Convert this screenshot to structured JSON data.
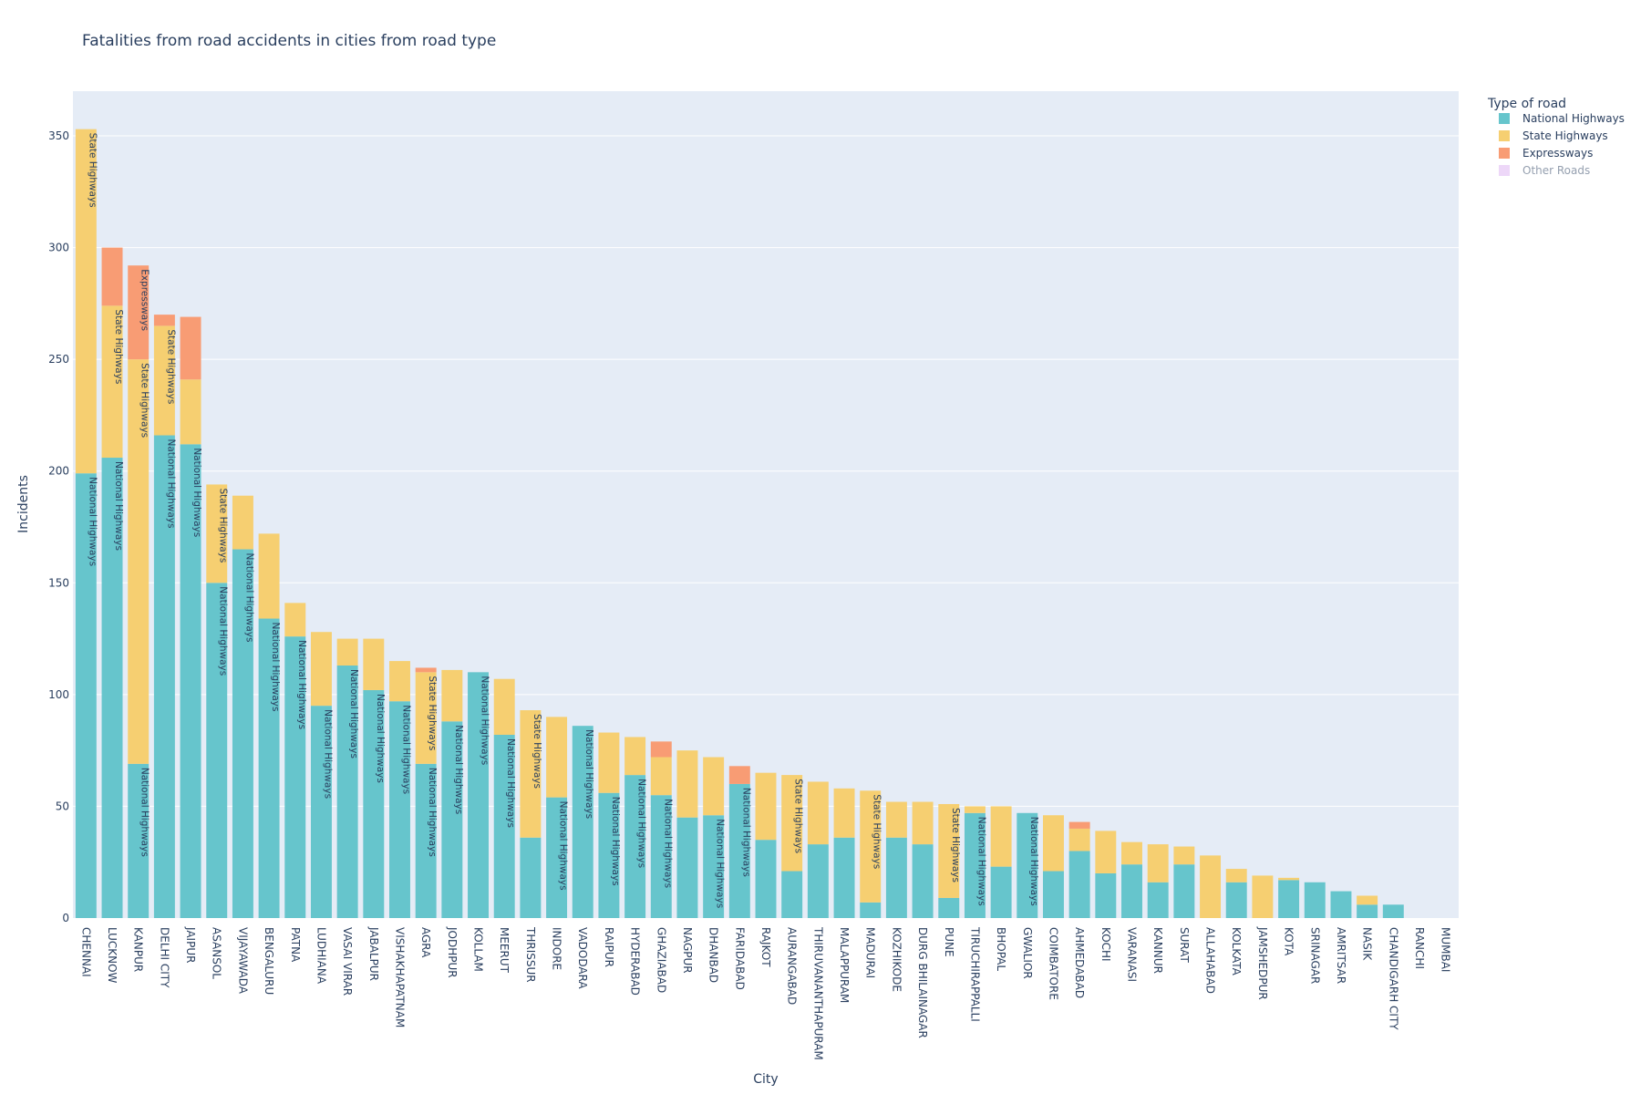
{
  "chart_data": {
    "type": "bar",
    "barmode": "stack",
    "title": "Fatalities from road accidents in cities from road type",
    "xlabel": "City",
    "ylabel": "Incidents",
    "ylim": [
      0,
      370
    ],
    "yticks": [
      0,
      50,
      100,
      150,
      200,
      250,
      300,
      350
    ],
    "grid": true,
    "legend": {
      "title": "Type of road",
      "position": "top-right"
    },
    "categories": [
      "CHENNAI",
      "LUCKNOW",
      "KANPUR",
      "DELHI CITY",
      "JAIPUR",
      "ASANSOL",
      "VIJAYAWADA",
      "BENGALURU",
      "PATNA",
      "LUDHIANA",
      "VASAI VIRAR",
      "JABALPUR",
      "VISHAKHAPATNAM",
      "AGRA",
      "JODHPUR",
      "KOLLAM",
      "MEERUT",
      "THRISSUR",
      "INDORE",
      "VADODARA",
      "RAIPUR",
      "HYDERABAD",
      "GHAZIABAD",
      "NAGPUR",
      "DHANBAD",
      "FARIDABAD",
      "RAJKOT",
      "AURANGABAD",
      "THIRUVANANTHAPURAM",
      "MALAPPURAM",
      "MADURAI",
      "KOZHIKODE",
      "DURG BHILAINAGAR",
      "PUNE",
      "TIRUCHIRAPPALLI",
      "BHOPAL",
      "GWALIOR",
      "COIMBATORE",
      "AHMEDABAD",
      "KOCHI",
      "VARANASI",
      "KANNUR",
      "SURAT",
      "ALLAHABAD",
      "KOLKATA",
      "JAMSHEDPUR",
      "KOTA",
      "SRINAGAR",
      "AMRITSAR",
      "NASIK",
      "CHANDIGARH CITY",
      "RANCHI",
      "MUMBAI"
    ],
    "series": [
      {
        "name": "National Highways",
        "color": "#66c5cc",
        "values": [
          199,
          206,
          69,
          216,
          212,
          150,
          165,
          134,
          126,
          95,
          113,
          102,
          97,
          69,
          88,
          110,
          82,
          36,
          54,
          86,
          56,
          64,
          55,
          45,
          46,
          60,
          35,
          21,
          33,
          36,
          7,
          36,
          33,
          9,
          47,
          23,
          47,
          21,
          30,
          20,
          24,
          16,
          24,
          0,
          16,
          0,
          17,
          16,
          12,
          6,
          6,
          0,
          0
        ]
      },
      {
        "name": "State Highways",
        "color": "#f6cf71",
        "values": [
          154,
          68,
          181,
          49,
          29,
          44,
          24,
          38,
          15,
          33,
          12,
          23,
          18,
          41,
          23,
          0,
          25,
          57,
          36,
          0,
          27,
          17,
          17,
          30,
          26,
          0,
          30,
          43,
          28,
          22,
          50,
          16,
          19,
          42,
          3,
          27,
          0,
          25,
          10,
          19,
          10,
          17,
          8,
          28,
          6,
          19,
          1,
          0,
          0,
          4,
          0,
          0,
          0
        ]
      },
      {
        "name": "Expressways",
        "color": "#f89c74",
        "values": [
          0,
          26,
          42,
          5,
          28,
          0,
          0,
          0,
          0,
          0,
          0,
          0,
          0,
          2,
          0,
          0,
          0,
          0,
          0,
          0,
          0,
          0,
          7,
          0,
          0,
          8,
          0,
          0,
          0,
          0,
          0,
          0,
          0,
          0,
          0,
          0,
          0,
          0,
          3,
          0,
          0,
          0,
          0,
          0,
          0,
          0,
          0,
          0,
          0,
          0,
          0,
          0,
          0
        ]
      },
      {
        "name": "Other Roads",
        "color": "#dcb0f2",
        "legend_faded": true,
        "values": [
          0,
          0,
          0,
          0,
          0,
          0,
          0,
          0,
          0,
          0,
          0,
          0,
          0,
          0,
          0,
          0,
          0,
          0,
          0,
          0,
          0,
          0,
          0,
          0,
          0,
          0,
          0,
          0,
          0,
          0,
          0,
          0,
          0,
          0,
          0,
          0,
          0,
          0,
          0,
          0,
          0,
          0,
          0,
          0,
          0,
          0,
          0,
          0,
          0,
          0,
          0,
          0,
          0
        ]
      }
    ],
    "annotations": [
      {
        "city": "CHENNAI",
        "series": "National Highways",
        "text": "National Highways"
      },
      {
        "city": "CHENNAI",
        "series": "State Highways",
        "text": "State Highways"
      },
      {
        "city": "LUCKNOW",
        "series": "National Highways",
        "text": "National Highways"
      },
      {
        "city": "LUCKNOW",
        "series": "State Highways",
        "text": "State Highways"
      },
      {
        "city": "KANPUR",
        "series": "National Highways",
        "text": "National Highways"
      },
      {
        "city": "KANPUR",
        "series": "State Highways",
        "text": "State Highways"
      },
      {
        "city": "KANPUR",
        "series": "Expressways",
        "text": "Expressways"
      },
      {
        "city": "DELHI CITY",
        "series": "National Highways",
        "text": "National Highways"
      },
      {
        "city": "DELHI CITY",
        "series": "State Highways",
        "text": "State Highways"
      },
      {
        "city": "JAIPUR",
        "series": "National Highways",
        "text": "National Highways"
      },
      {
        "city": "ASANSOL",
        "series": "National Highways",
        "text": "National Highways"
      },
      {
        "city": "ASANSOL",
        "series": "State Highways",
        "text": "State Highways"
      },
      {
        "city": "VIJAYAWADA",
        "series": "National Highways",
        "text": "National Highways"
      },
      {
        "city": "BENGALURU",
        "series": "National Highways",
        "text": "National Highways"
      },
      {
        "city": "PATNA",
        "series": "National Highways",
        "text": "National Highways"
      },
      {
        "city": "LUDHIANA",
        "series": "National Highways",
        "text": "National Highways"
      },
      {
        "city": "VASAI VIRAR",
        "series": "National Highways",
        "text": "National Highways"
      },
      {
        "city": "JABALPUR",
        "series": "National Highways",
        "text": "National Highways"
      },
      {
        "city": "VISHAKHAPATNAM",
        "series": "National Highways",
        "text": "National Highways"
      },
      {
        "city": "AGRA",
        "series": "National Highways",
        "text": "National Highways"
      },
      {
        "city": "AGRA",
        "series": "State Highways",
        "text": "State Highways"
      },
      {
        "city": "JODHPUR",
        "series": "National Highways",
        "text": "National Highways"
      },
      {
        "city": "KOLLAM",
        "series": "National Highways",
        "text": "National Highways"
      },
      {
        "city": "MEERUT",
        "series": "National Highways",
        "text": "National Highways"
      },
      {
        "city": "THRISSUR",
        "series": "State Highways",
        "text": "State Highways"
      },
      {
        "city": "INDORE",
        "series": "National Highways",
        "text": "National Highways"
      },
      {
        "city": "VADODARA",
        "series": "National Highways",
        "text": "National Highways"
      },
      {
        "city": "RAIPUR",
        "series": "National Highways",
        "text": "National Highways"
      },
      {
        "city": "HYDERABAD",
        "series": "National Highways",
        "text": "National Highways"
      },
      {
        "city": "GHAZIABAD",
        "series": "National Highways",
        "text": "National Highways"
      },
      {
        "city": "DHANBAD",
        "series": "National Highways",
        "text": "National Highways"
      },
      {
        "city": "FARIDABAD",
        "series": "National Highways",
        "text": "National Highways"
      },
      {
        "city": "AURANGABAD",
        "series": "State Highways",
        "text": "State Highways"
      },
      {
        "city": "MADURAI",
        "series": "State Highways",
        "text": "State Highways"
      },
      {
        "city": "PUNE",
        "series": "State Highways",
        "text": "State Highways"
      },
      {
        "city": "TIRUCHIRAPPALLI",
        "series": "National Highways",
        "text": "National Highways"
      },
      {
        "city": "GWALIOR",
        "series": "National Highways",
        "text": "National Highways"
      }
    ]
  }
}
